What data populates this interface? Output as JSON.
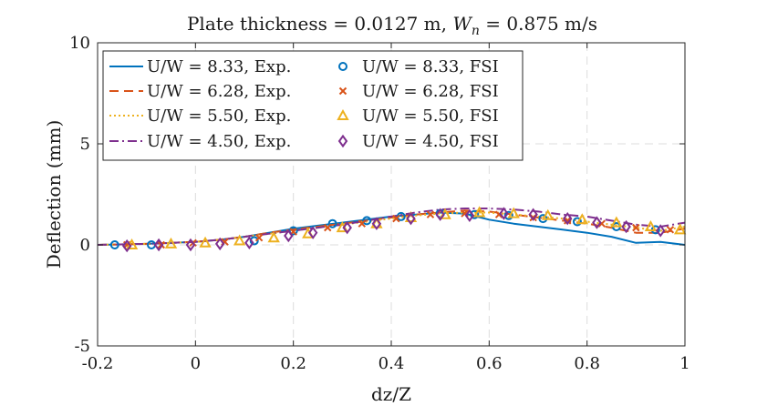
{
  "chart_data": {
    "type": "line",
    "title": "Plate thickness = 0.0127 m, W_n = 0.875 m/s",
    "title_parts": {
      "prefix": "Plate thickness = 0.0127 m, ",
      "var_main": "W",
      "var_sub": "n",
      "suffix": " = 0.875 m/s"
    },
    "xlabel": "dz/Z",
    "ylabel": "Deflection (mm)",
    "xlim": [
      -0.2,
      1.0
    ],
    "ylim": [
      -5,
      10
    ],
    "xticks": [
      -0.2,
      0,
      0.2,
      0.4,
      0.6,
      0.8,
      1
    ],
    "xtick_labels": [
      "-0.2",
      "0",
      "0.2",
      "0.4",
      "0.6",
      "0.8",
      "1"
    ],
    "yticks": [
      -5,
      0,
      5,
      10
    ],
    "ytick_labels": [
      "-5",
      "0",
      "5",
      "10"
    ],
    "grid": true,
    "legend_position": "top-left",
    "colors": {
      "blue": "#0072BD",
      "orange": "#D95319",
      "yellow": "#EDB120",
      "purple": "#7E2F8E"
    },
    "series": [
      {
        "name": "U/W = 8.33, Exp.",
        "kind": "line",
        "style": "solid",
        "color": "#0072BD",
        "x": [
          -0.2,
          -0.1,
          0,
          0.05,
          0.1,
          0.15,
          0.2,
          0.25,
          0.3,
          0.35,
          0.4,
          0.45,
          0.5,
          0.55,
          0.6,
          0.65,
          0.7,
          0.75,
          0.8,
          0.85,
          0.9,
          0.95,
          1.0
        ],
        "y": [
          0,
          0.05,
          0.15,
          0.25,
          0.4,
          0.6,
          0.8,
          0.95,
          1.1,
          1.25,
          1.4,
          1.5,
          1.6,
          1.55,
          1.25,
          1.05,
          0.9,
          0.75,
          0.6,
          0.4,
          0.1,
          0.15,
          0.0
        ]
      },
      {
        "name": "U/W = 6.28, Exp.",
        "kind": "line",
        "style": "dashed",
        "color": "#D95319",
        "x": [
          -0.2,
          -0.1,
          0,
          0.05,
          0.1,
          0.15,
          0.2,
          0.25,
          0.3,
          0.35,
          0.4,
          0.45,
          0.5,
          0.55,
          0.6,
          0.65,
          0.7,
          0.75,
          0.8,
          0.85,
          0.9,
          0.95,
          1.0
        ],
        "y": [
          0,
          0.05,
          0.15,
          0.25,
          0.4,
          0.6,
          0.75,
          0.9,
          1.05,
          1.2,
          1.35,
          1.5,
          1.6,
          1.7,
          1.65,
          1.5,
          1.35,
          1.2,
          1.05,
          0.85,
          0.6,
          0.6,
          0.8
        ]
      },
      {
        "name": "U/W = 5.50, Exp.",
        "kind": "line",
        "style": "dotted",
        "color": "#EDB120",
        "x": [
          -0.2,
          -0.1,
          0,
          0.05,
          0.1,
          0.15,
          0.2,
          0.25,
          0.3,
          0.35,
          0.4,
          0.45,
          0.5,
          0.55,
          0.6,
          0.65,
          0.7,
          0.75,
          0.8,
          0.85,
          0.9,
          0.95,
          1.0
        ],
        "y": [
          0,
          0.05,
          0.15,
          0.25,
          0.4,
          0.55,
          0.7,
          0.85,
          1.0,
          1.15,
          1.3,
          1.45,
          1.55,
          1.6,
          1.6,
          1.5,
          1.4,
          1.3,
          1.15,
          1.0,
          0.85,
          0.7,
          0.9
        ]
      },
      {
        "name": "U/W = 4.50, Exp.",
        "kind": "line",
        "style": "dashdot",
        "color": "#7E2F8E",
        "x": [
          -0.2,
          -0.1,
          0,
          0.05,
          0.1,
          0.15,
          0.2,
          0.25,
          0.3,
          0.35,
          0.4,
          0.45,
          0.5,
          0.55,
          0.6,
          0.65,
          0.7,
          0.75,
          0.8,
          0.85,
          0.9,
          0.95,
          1.0
        ],
        "y": [
          0,
          0.05,
          0.15,
          0.25,
          0.4,
          0.55,
          0.7,
          0.85,
          1.0,
          1.2,
          1.4,
          1.6,
          1.75,
          1.8,
          1.8,
          1.75,
          1.65,
          1.5,
          1.4,
          1.2,
          1.0,
          0.9,
          1.1
        ]
      },
      {
        "name": "U/W = 8.33, FSI",
        "kind": "marker",
        "marker": "circle",
        "color": "#0072BD",
        "x": [
          -0.165,
          -0.09,
          0.12,
          0.2,
          0.28,
          0.35,
          0.42,
          0.5,
          0.57,
          0.64,
          0.71,
          0.78,
          0.86,
          0.94
        ],
        "y": [
          0.0,
          0.0,
          0.2,
          0.7,
          1.05,
          1.2,
          1.4,
          1.55,
          1.5,
          1.45,
          1.3,
          1.15,
          0.9,
          0.75
        ]
      },
      {
        "name": "U/W = 6.28, FSI",
        "kind": "marker",
        "marker": "x",
        "color": "#D95319",
        "x": [
          -0.14,
          -0.07,
          -0.005,
          0.06,
          0.13,
          0.2,
          0.27,
          0.34,
          0.41,
          0.48,
          0.55,
          0.62,
          0.69,
          0.76,
          0.83,
          0.9,
          0.97
        ],
        "y": [
          0.0,
          0.0,
          0.1,
          0.15,
          0.35,
          0.65,
          0.85,
          1.05,
          1.3,
          1.5,
          1.55,
          1.5,
          1.35,
          1.2,
          1.05,
          0.85,
          0.75
        ]
      },
      {
        "name": "U/W = 5.50, FSI",
        "kind": "marker",
        "marker": "triangle",
        "color": "#EDB120",
        "x": [
          -0.13,
          -0.05,
          0.02,
          0.09,
          0.16,
          0.23,
          0.3,
          0.37,
          0.44,
          0.51,
          0.58,
          0.65,
          0.72,
          0.79,
          0.86,
          0.93,
          0.99
        ],
        "y": [
          0.0,
          0.05,
          0.1,
          0.2,
          0.35,
          0.55,
          0.85,
          1.05,
          1.35,
          1.5,
          1.6,
          1.55,
          1.45,
          1.25,
          1.1,
          0.9,
          0.75
        ]
      },
      {
        "name": "U/W = 4.50, FSI",
        "kind": "marker",
        "marker": "diamond",
        "color": "#7E2F8E",
        "x": [
          -0.14,
          -0.075,
          -0.01,
          0.05,
          0.11,
          0.19,
          0.24,
          0.31,
          0.37,
          0.44,
          0.5,
          0.56,
          0.63,
          0.69,
          0.76,
          0.82,
          0.88,
          0.95
        ],
        "y": [
          -0.05,
          0.0,
          0.0,
          0.05,
          0.1,
          0.45,
          0.6,
          0.85,
          1.05,
          1.3,
          1.5,
          1.45,
          1.55,
          1.5,
          1.3,
          1.1,
          0.9,
          0.7
        ]
      }
    ],
    "legend_columns": [
      [
        "U/W = 8.33, Exp.",
        "U/W = 6.28, Exp.",
        "U/W = 5.50, Exp.",
        "U/W = 4.50, Exp."
      ],
      [
        "U/W = 8.33, FSI",
        "U/W = 6.28, FSI",
        "U/W = 5.50, FSI",
        "U/W = 4.50, FSI"
      ]
    ]
  }
}
